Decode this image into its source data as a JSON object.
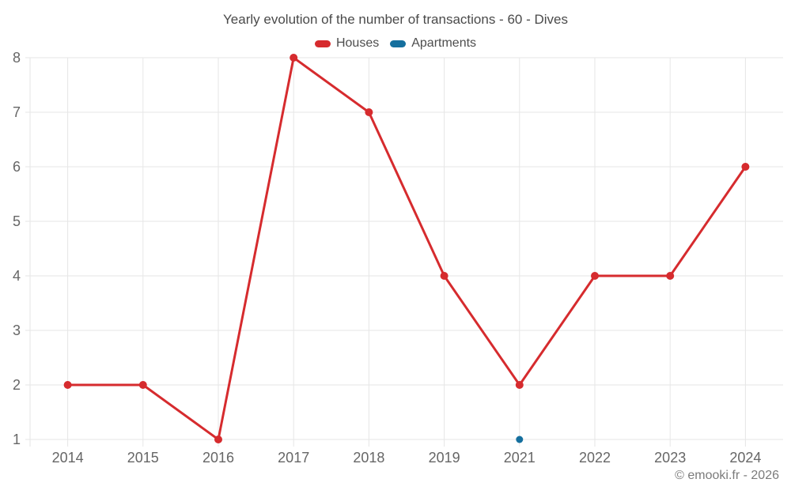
{
  "chart_data": {
    "type": "line",
    "title": "Yearly evolution of the number of transactions - 60 - Dives",
    "categories": [
      "2014",
      "2015",
      "2016",
      "2017",
      "2018",
      "2019",
      "2021",
      "2022",
      "2023",
      "2024"
    ],
    "series": [
      {
        "name": "Houses",
        "color": "#d62b2e",
        "values": [
          2,
          2,
          1,
          8,
          7,
          4,
          2,
          4,
          4,
          6
        ]
      },
      {
        "name": "Apartments",
        "color": "#156f9e",
        "values": [
          null,
          null,
          null,
          null,
          null,
          null,
          1,
          null,
          null,
          null
        ]
      }
    ],
    "xlabel": "",
    "ylabel": "",
    "ylim": [
      1,
      8
    ],
    "yticks": [
      1,
      2,
      3,
      4,
      5,
      6,
      7,
      8
    ],
    "grid": true,
    "legend_position": "top"
  },
  "colors": {
    "grid": "#e6e6e6",
    "axis_text": "#666666",
    "title_text": "#4a4a4a",
    "legend_text": "#4d4d4d",
    "watermark_text": "#7b7b7b",
    "background": "#ffffff"
  },
  "footer": {
    "watermark": "© emooki.fr - 2026"
  }
}
